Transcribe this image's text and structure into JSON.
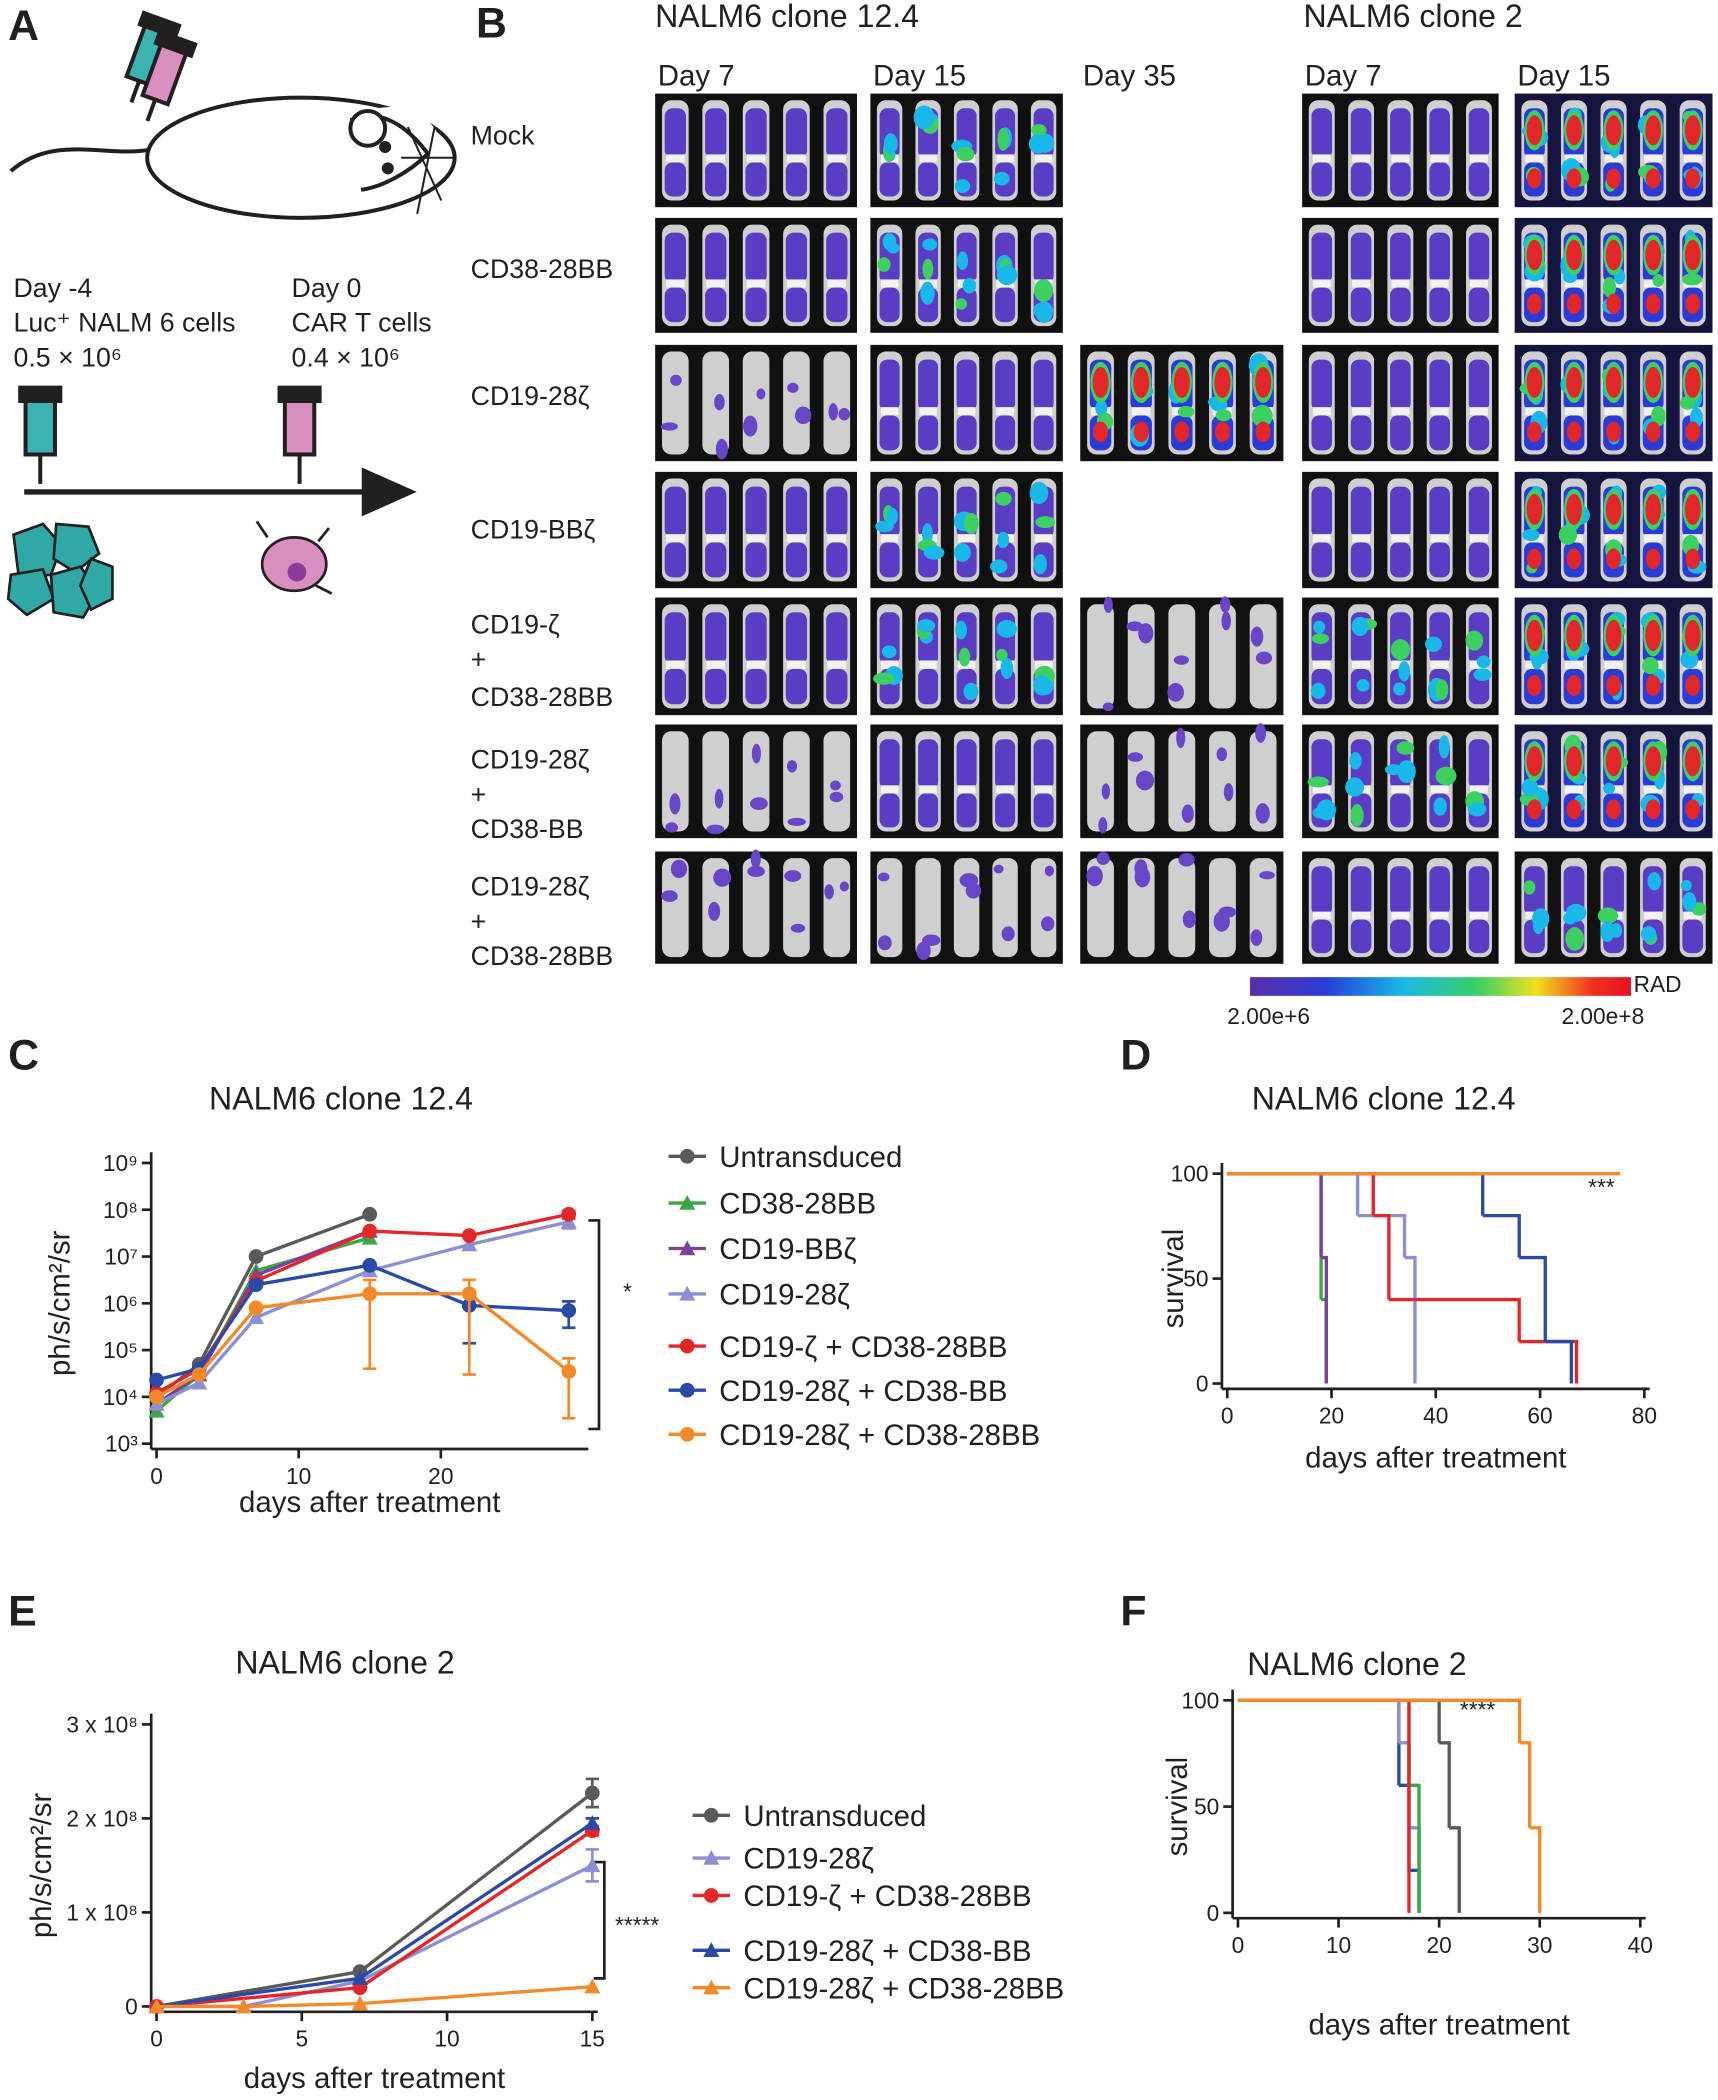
{
  "panel_a": {
    "label": "A",
    "injections": [
      {
        "day": "Day -4",
        "cells": "Luc⁺ NALM 6 cells",
        "dose": "0.5 × 10⁶"
      },
      {
        "day": "Day 0",
        "cells": "CAR T cells",
        "dose": "0.4 × 10⁶"
      }
    ]
  },
  "panel_b": {
    "label": "B",
    "groups": [
      {
        "title": "NALM6 clone 12.4",
        "days": [
          "Day 7",
          "Day 15",
          "Day 35"
        ]
      },
      {
        "title": "NALM6 clone 2",
        "days": [
          "Day 7",
          "Day 15"
        ]
      }
    ],
    "rows": [
      [
        "Mock"
      ],
      [
        "CD38-28BB"
      ],
      [
        "CD19-28ζ"
      ],
      [
        "CD19-BBζ"
      ],
      [
        "CD19-ζ",
        "+",
        "CD38-28BB"
      ],
      [
        "CD19-28ζ",
        "+",
        "CD38-BB"
      ],
      [
        "CD19-28ζ",
        "+",
        "CD38-28BB"
      ]
    ],
    "colorbar": {
      "unit": "RAD",
      "min_label": "2.00e+6",
      "max_label": "2.00e+8"
    }
  },
  "chart_data": [
    {
      "type": "line",
      "panel_label": "C",
      "title": "NALM6 clone 12.4",
      "xlabel": "days after treatment",
      "ylabel": "ph/s/cm²/sr",
      "log_y": true,
      "xlim": [
        0,
        30
      ],
      "xticks": [
        0,
        10,
        20
      ],
      "ylim": [
        1000,
        1000000000
      ],
      "yticks": [
        {
          "value": 1000,
          "label": "10³"
        },
        {
          "value": 10000,
          "label": "10⁴"
        },
        {
          "value": 100000,
          "label": "10⁵"
        },
        {
          "value": 1000000,
          "label": "10⁶"
        },
        {
          "value": 10000000,
          "label": "10⁷"
        },
        {
          "value": 100000000,
          "label": "10⁸"
        },
        {
          "value": 1000000000,
          "label": "10⁹"
        }
      ],
      "annotation": "*",
      "series": [
        {
          "name": "Untransduced",
          "color": "#5a5a5a",
          "marker": "circle",
          "x": [
            0,
            3,
            7,
            15
          ],
          "values": [
            10000,
            50000,
            10000000,
            80000000
          ]
        },
        {
          "name": "CD38-28BB",
          "color": "#3aa845",
          "marker": "triangle",
          "x": [
            0,
            3,
            7,
            15
          ],
          "values": [
            5000,
            30000,
            5000000,
            25000000
          ]
        },
        {
          "name": "CD19-BBζ",
          "color": "#7b3f9e",
          "marker": "triangle",
          "x": [
            0,
            3,
            7,
            15
          ],
          "values": [
            7000,
            30000,
            4000000,
            35000000
          ]
        },
        {
          "name": "CD19-28ζ",
          "color": "#8c8fd2",
          "marker": "triangle",
          "x": [
            0,
            3,
            7,
            15,
            22,
            29
          ],
          "values": [
            7000,
            20000,
            500000,
            5000000,
            18000000,
            55000000
          ],
          "errors": [
            null,
            null,
            null,
            null,
            null,
            15000000
          ]
        },
        {
          "name": "CD19-ζ + CD38-28BB",
          "color": "#e3262a",
          "marker": "circle",
          "x": [
            0,
            3,
            7,
            15,
            22,
            29
          ],
          "values": [
            12000,
            40000,
            3000000,
            35000000,
            28000000,
            80000000
          ],
          "errors": [
            null,
            null,
            null,
            null,
            null,
            15000000
          ]
        },
        {
          "name": "CD19-28ζ + CD38-BB",
          "color": "#2a4aa8",
          "marker": "circle",
          "x": [
            0,
            3,
            7,
            15,
            22,
            29
          ],
          "values": [
            23000,
            40000,
            2500000,
            6500000,
            900000,
            700000
          ],
          "errors": [
            null,
            null,
            null,
            null,
            760000,
            400000
          ]
        },
        {
          "name": "CD19-28ζ + CD38-28BB",
          "color": "#f4892a",
          "marker": "circle",
          "x": [
            0,
            3,
            7,
            15,
            22,
            29
          ],
          "values": [
            10000,
            30000,
            800000,
            1600000,
            1600000,
            35000
          ],
          "errors": [
            null,
            null,
            null,
            1560000,
            1570000,
            31500
          ]
        }
      ]
    },
    {
      "type": "step",
      "panel_label": "D",
      "title": "NALM6 clone 12.4",
      "xlabel": "days after treatment",
      "ylabel": "survival",
      "xlim": [
        0,
        80
      ],
      "xticks": [
        0,
        20,
        40,
        60,
        80
      ],
      "ylim": [
        0,
        100
      ],
      "yticks": [
        0,
        50,
        100
      ],
      "annotation": "***",
      "series": [
        {
          "color": "#3aa845",
          "x": [
            0,
            18,
            19
          ],
          "values": [
            100,
            40,
            0
          ]
        },
        {
          "color": "#7b3f9e",
          "x": [
            0,
            18,
            19
          ],
          "values": [
            100,
            60,
            0
          ]
        },
        {
          "color": "#8c8fd2",
          "x": [
            0,
            25,
            34,
            36
          ],
          "values": [
            100,
            80,
            60,
            0
          ]
        },
        {
          "color": "#e3262a",
          "x": [
            0,
            28,
            31,
            56,
            67
          ],
          "values": [
            100,
            80,
            40,
            20,
            0
          ]
        },
        {
          "color": "#2a4aa8",
          "x": [
            0,
            49,
            56,
            61,
            66
          ],
          "values": [
            100,
            80,
            60,
            20,
            0
          ]
        },
        {
          "color": "#f4892a",
          "x": [
            0,
            75
          ],
          "values": [
            100,
            100
          ]
        }
      ]
    },
    {
      "type": "line",
      "panel_label": "E",
      "title": "NALM6 clone 2",
      "xlabel": "days after treatment",
      "ylabel": "ph/s/cm²/sr",
      "xlim": [
        0,
        15
      ],
      "xticks": [
        0,
        5,
        10,
        15
      ],
      "ylim": [
        0,
        300000000
      ],
      "yticks": [
        0,
        {
          "value": 100000000,
          "label": "1 x 10⁸"
        },
        {
          "value": 200000000,
          "label": "2 x 10⁸"
        },
        {
          "value": 300000000,
          "label": "3 x 10⁸"
        }
      ],
      "annotation": "*****",
      "series": [
        {
          "name": "Untransduced",
          "color": "#5a5a5a",
          "marker": "circle",
          "x": [
            0,
            7,
            15
          ],
          "values": [
            0,
            37000000,
            227000000
          ],
          "errors": [
            null,
            null,
            15000000
          ]
        },
        {
          "name": "CD19-28ζ",
          "color": "#8c8fd2",
          "marker": "triangle",
          "x": [
            0,
            3,
            7,
            15
          ],
          "values": [
            0,
            0,
            27000000,
            150000000
          ],
          "errors": [
            null,
            null,
            null,
            17000000
          ]
        },
        {
          "name": "CD19-ζ + CD38-28BB",
          "color": "#e3262a",
          "marker": "circle",
          "x": [
            0,
            7,
            15
          ],
          "values": [
            0,
            20000000,
            187000000
          ],
          "errors": [
            null,
            null,
            5000000
          ]
        },
        {
          "name": "CD19-28ζ + CD38-BB",
          "color": "#2a4aa8",
          "marker": "triangle",
          "x": [
            0,
            7,
            15
          ],
          "values": [
            0,
            30000000,
            195000000
          ],
          "errors": [
            null,
            null,
            5000000
          ]
        },
        {
          "name": "CD19-28ζ + CD38-28BB",
          "color": "#f4892a",
          "marker": "triangle",
          "x": [
            0,
            3,
            7,
            15
          ],
          "values": [
            0,
            0,
            3000000,
            21000000
          ]
        }
      ]
    },
    {
      "type": "step",
      "panel_label": "F",
      "title": "NALM6 clone 2",
      "xlabel": "days after treatment",
      "ylabel": "survival",
      "xlim": [
        0,
        40
      ],
      "xticks": [
        0,
        10,
        20,
        30,
        40
      ],
      "ylim": [
        0,
        100
      ],
      "yticks": [
        0,
        50,
        100
      ],
      "annotation": "****",
      "series": [
        {
          "color": "#5a5a5a",
          "x": [
            0,
            20,
            21,
            22
          ],
          "values": [
            100,
            80,
            40,
            0
          ]
        },
        {
          "color": "#2a4aa8",
          "x": [
            0,
            16,
            17,
            18
          ],
          "values": [
            100,
            60,
            20,
            0
          ]
        },
        {
          "color": "#8c8fd2",
          "x": [
            0,
            16,
            17,
            18
          ],
          "values": [
            100,
            80,
            40,
            0
          ]
        },
        {
          "color": "#3aa845",
          "x": [
            0,
            17,
            18
          ],
          "values": [
            100,
            60,
            0
          ]
        },
        {
          "color": "#e3262a",
          "x": [
            0,
            17
          ],
          "values": [
            100,
            0
          ]
        },
        {
          "color": "#f4892a",
          "x": [
            0,
            28,
            29,
            30
          ],
          "values": [
            100,
            80,
            40,
            0
          ]
        }
      ]
    }
  ]
}
